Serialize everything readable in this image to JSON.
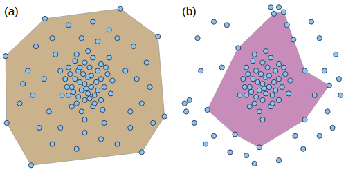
{
  "chart_data": [
    {
      "type": "scatter",
      "title": "(a)",
      "color": "#8ec1ec",
      "tick_labels": false,
      "xlim": [
        0,
        100
      ],
      "ylim": [
        0,
        100
      ],
      "x": [
        1.3,
        25.5,
        72,
        95,
        99,
        85,
        17,
        2,
        15,
        20,
        30,
        40,
        55,
        65,
        80,
        88,
        90,
        85,
        92,
        78,
        70,
        60,
        45,
        30,
        22,
        10,
        18,
        25,
        12,
        75,
        82,
        78,
        35,
        50,
        62,
        28,
        32,
        70,
        48,
        58,
        40,
        42,
        44,
        46,
        48,
        50,
        52,
        54,
        56,
        58,
        60,
        62,
        45,
        50,
        55,
        60,
        38,
        40,
        44,
        50,
        55,
        60,
        64,
        66,
        48,
        52,
        47,
        53,
        57,
        43,
        49,
        51,
        46,
        58,
        54,
        41,
        63,
        39,
        45,
        52,
        36,
        67,
        56,
        50,
        42,
        61,
        35,
        65,
        47,
        53
      ],
      "y": [
        69,
        92,
        98,
        81,
        32,
        10,
        2,
        28,
        60,
        75,
        80,
        88,
        90,
        85,
        75,
        65,
        50,
        40,
        28,
        25,
        15,
        18,
        12,
        15,
        25,
        40,
        45,
        55,
        52,
        60,
        55,
        35,
        25,
        22,
        28,
        35,
        70,
        80,
        80,
        78,
        45,
        50,
        55,
        60,
        48,
        52,
        56,
        50,
        45,
        60,
        55,
        50,
        40,
        42,
        38,
        42,
        55,
        62,
        66,
        65,
        68,
        64,
        58,
        46,
        35,
        46,
        53,
        62,
        53,
        47,
        58,
        49,
        44,
        48,
        57,
        58,
        62,
        50,
        70,
        72,
        45,
        54,
        40,
        30,
        38,
        36,
        60,
        68,
        62,
        43
      ],
      "region": {
        "color": "#c9b28c",
        "x": [
          1.3,
          25.5,
          72,
          95,
          99,
          85,
          17,
          2
        ],
        "y": [
          69,
          92,
          98,
          81,
          32,
          10,
          2,
          28
        ]
      }
    },
    {
      "type": "scatter",
      "title": "(b)",
      "color": "#8ec1ec",
      "tick_labels": false,
      "xlim": [
        0,
        100
      ],
      "ylim": [
        0,
        100
      ],
      "x": [
        16,
        35,
        57,
        63,
        69,
        76,
        91,
        76,
        48,
        33,
        5,
        2,
        10,
        20,
        55,
        60,
        85,
        95,
        98,
        90,
        85,
        75,
        60,
        45,
        30,
        20,
        8,
        12,
        25,
        80,
        93,
        70,
        40,
        3,
        88,
        97,
        28,
        15,
        65,
        82,
        40,
        42,
        44,
        46,
        48,
        50,
        52,
        54,
        56,
        58,
        60,
        62,
        45,
        50,
        55,
        60,
        38,
        40,
        44,
        50,
        55,
        60,
        64,
        66,
        48,
        52,
        47,
        53,
        57,
        43,
        49,
        51,
        46,
        58,
        54,
        41,
        63,
        39,
        45,
        52,
        36,
        67,
        56,
        50,
        42
      ],
      "y": [
        36,
        74,
        95,
        96,
        79,
        60,
        51,
        30,
        13,
        21,
        42,
        40,
        80,
        90,
        99,
        99,
        80,
        70,
        45,
        35,
        20,
        12,
        5,
        3,
        10,
        20,
        28,
        60,
        62,
        90,
        25,
        20,
        8,
        35,
        60,
        55,
        88,
        15,
        88,
        45,
        45,
        50,
        55,
        60,
        48,
        52,
        56,
        50,
        45,
        60,
        55,
        50,
        40,
        42,
        38,
        42,
        55,
        62,
        66,
        65,
        68,
        64,
        58,
        46,
        35,
        46,
        53,
        62,
        53,
        47,
        58,
        49,
        44,
        48,
        57,
        58,
        62,
        50,
        70,
        72,
        45,
        54,
        40,
        30,
        38
      ],
      "region": {
        "color": "#c88cba",
        "x": [
          16,
          35,
          57,
          63,
          69,
          76,
          91,
          76,
          48,
          33
        ],
        "y": [
          36,
          74,
          95,
          96,
          79,
          60,
          51,
          30,
          13,
          21
        ]
      }
    }
  ]
}
